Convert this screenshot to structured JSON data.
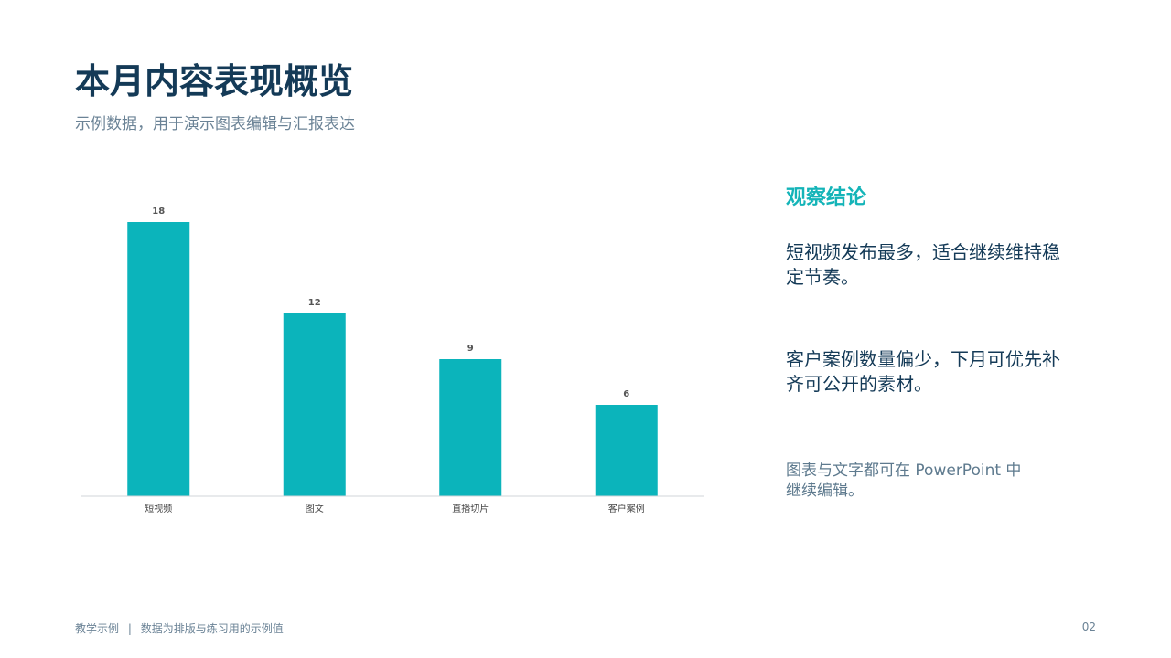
{
  "slide": {
    "title": "本月内容表现概览",
    "subtitle": "示例数据，用于演示图表编辑与汇报表达"
  },
  "chart_data": {
    "type": "bar",
    "categories": [
      "短视频",
      "图文",
      "直播切片",
      "客户案例"
    ],
    "values": [
      18,
      12,
      9,
      6
    ],
    "ylim": [
      0,
      18
    ],
    "grid": false,
    "legend": "none",
    "data_labels": true,
    "bar_color": "#0bb4bb"
  },
  "panel": {
    "heading": "观察结论",
    "insight_1": "短视频发布最多，适合继续维持稳定节奏。",
    "insight_2": "客户案例数量偏少，下月可优先补齐可公开的素材。",
    "note": "图表与文字都可在 PowerPoint 中继续编辑。"
  },
  "footer": {
    "left_part_1": "教学示例",
    "separator": "|",
    "left_part_2": "数据为排版与练习用的示例值",
    "page_number": "02"
  },
  "colors": {
    "title": "#143a57",
    "accent": "#14b4b8",
    "bar": "#0bb4bb",
    "muted": "#6b8396"
  }
}
